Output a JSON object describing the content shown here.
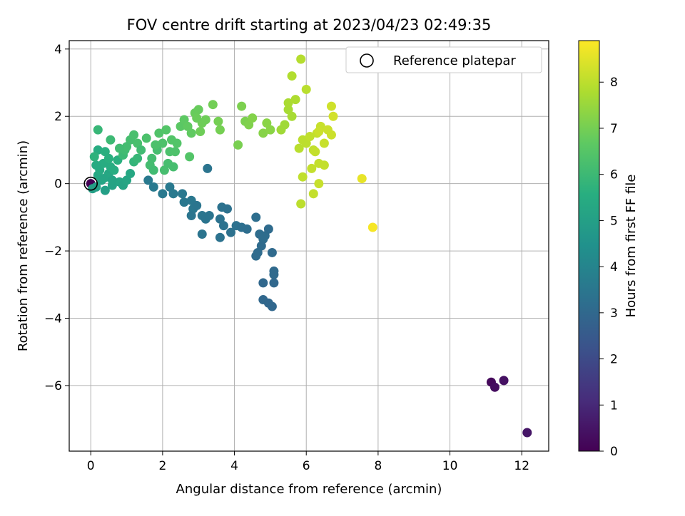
{
  "chart_data": {
    "type": "scatter",
    "title": "FOV centre drift starting at 2023/04/23 02:49:35",
    "xlabel": "Angular distance from reference (arcmin)",
    "ylabel": "Rotation from reference (arcmin)",
    "xlim": [
      -0.6,
      12.75
    ],
    "ylim": [
      -7.95,
      4.25
    ],
    "xticks": [
      0,
      2,
      4,
      6,
      8,
      10,
      12
    ],
    "yticks": [
      -6,
      -4,
      -2,
      0,
      2,
      4
    ],
    "grid": true,
    "legend": {
      "position": "upper-right",
      "entries": [
        "Reference platepar"
      ]
    },
    "reference_point": {
      "x": 0,
      "y": 0,
      "label": "Reference platepar"
    },
    "colorbar": {
      "label": "Hours from first FF file",
      "min": 0,
      "max": 8.9,
      "ticks": [
        0,
        1,
        2,
        3,
        4,
        5,
        6,
        7,
        8
      ],
      "colormap": "viridis"
    },
    "points": [
      [
        0,
        0,
        0
      ],
      [
        11.15,
        -5.9,
        0.2
      ],
      [
        11.25,
        -6.05,
        0.3
      ],
      [
        11.5,
        -5.85,
        0.4
      ],
      [
        12.15,
        -7.4,
        0.5
      ],
      [
        1.6,
        0.1,
        3.6
      ],
      [
        1.75,
        -0.1,
        3.6
      ],
      [
        2.2,
        -0.1,
        3.6
      ],
      [
        2.3,
        -0.3,
        3.6
      ],
      [
        2.55,
        -0.3,
        3.55
      ],
      [
        2.6,
        -0.55,
        3.5
      ],
      [
        2.8,
        -0.5,
        3.5
      ],
      [
        2.85,
        -0.75,
        3.5
      ],
      [
        2.95,
        -0.65,
        3.45
      ],
      [
        3.1,
        -0.95,
        3.45
      ],
      [
        3.2,
        -1.05,
        3.4
      ],
      [
        3.3,
        -0.95,
        3.4
      ],
      [
        2.8,
        -0.95,
        3.45
      ],
      [
        3.6,
        -1.05,
        3.35
      ],
      [
        3.7,
        -1.25,
        3.35
      ],
      [
        3.65,
        -0.7,
        3.35
      ],
      [
        3.8,
        -0.75,
        3.3
      ],
      [
        3.9,
        -1.45,
        3.3
      ],
      [
        4.05,
        -1.25,
        3.3
      ],
      [
        4.2,
        -1.3,
        3.25
      ],
      [
        4.35,
        -1.35,
        3.2
      ],
      [
        4.6,
        -1,
        3.2
      ],
      [
        4.7,
        -1.5,
        3.15
      ],
      [
        4.8,
        -1.65,
        3.15
      ],
      [
        4.85,
        -1.55,
        3.15
      ],
      [
        4.75,
        -1.85,
        3.1
      ],
      [
        4.65,
        -2.05,
        3.1
      ],
      [
        4.6,
        -2.15,
        3.1
      ],
      [
        4.95,
        -1.35,
        3.1
      ],
      [
        5.05,
        -2.05,
        3.05
      ],
      [
        5.1,
        -2.6,
        3.05
      ],
      [
        5.1,
        -2.7,
        3.05
      ],
      [
        5.1,
        -2.95,
        3.0
      ],
      [
        4.8,
        -2.95,
        3.0
      ],
      [
        4.8,
        -3.45,
        3.0
      ],
      [
        4.95,
        -3.55,
        2.95
      ],
      [
        5.05,
        -3.65,
        2.95
      ],
      [
        3.1,
        -1.5,
        3.4
      ],
      [
        3.6,
        -1.6,
        3.35
      ],
      [
        3.25,
        0.45,
        3.4
      ],
      [
        2.0,
        -0.3,
        3.6
      ],
      [
        0.05,
        -0.15,
        5.0
      ],
      [
        0.15,
        -0.1,
        5.0
      ],
      [
        0.3,
        0.1,
        5.1
      ],
      [
        0.4,
        -0.2,
        5.0
      ],
      [
        0.5,
        0.3,
        5.2
      ],
      [
        0.6,
        -0.05,
        5.1
      ],
      [
        0.8,
        0.05,
        5.2
      ],
      [
        0.9,
        -0.05,
        5.15
      ],
      [
        1.0,
        0.1,
        5.2
      ],
      [
        1.1,
        0.3,
        5.3
      ],
      [
        0.2,
        0.25,
        5.3
      ],
      [
        0.25,
        0.4,
        5.4
      ],
      [
        0.35,
        0.6,
        5.5
      ],
      [
        0.45,
        0.2,
        5.3
      ],
      [
        0.55,
        0.5,
        5.5
      ],
      [
        0.65,
        0.4,
        5.5
      ],
      [
        0.75,
        0.7,
        5.6
      ],
      [
        0.2,
        1.0,
        5.5
      ],
      [
        0.4,
        0.95,
        5.6
      ],
      [
        0.5,
        0.75,
        5.6
      ],
      [
        0.35,
        0.15,
        5.2
      ],
      [
        0.15,
        0.55,
        5.4
      ],
      [
        0.6,
        0.1,
        5.15
      ],
      [
        1.2,
        0.65,
        5.8
      ],
      [
        1.3,
        0.75,
        5.9
      ],
      [
        0.1,
        0.8,
        5.7
      ],
      [
        0.2,
        1.6,
        5.9
      ],
      [
        0.55,
        1.3,
        6.0
      ],
      [
        0.9,
        0.85,
        6.0
      ],
      [
        0.95,
        1.0,
        6.1
      ],
      [
        1.1,
        1.3,
        6.2
      ],
      [
        1.3,
        1.2,
        6.25
      ],
      [
        1.4,
        1.0,
        6.1
      ],
      [
        1.55,
        1.35,
        6.3
      ],
      [
        1.7,
        0.75,
        6.15
      ],
      [
        1.85,
        1.0,
        6.2
      ],
      [
        1.9,
        1.5,
        6.4
      ],
      [
        2.0,
        1.2,
        6.35
      ],
      [
        2.1,
        1.6,
        6.45
      ],
      [
        2.2,
        0.95,
        6.3
      ],
      [
        2.3,
        0.5,
        6.2
      ],
      [
        2.35,
        0.95,
        6.35
      ],
      [
        2.4,
        1.2,
        6.45
      ],
      [
        2.5,
        1.7,
        6.6
      ],
      [
        2.6,
        1.9,
        6.65
      ],
      [
        2.7,
        1.7,
        6.7
      ],
      [
        2.8,
        1.5,
        6.7
      ],
      [
        2.9,
        2.1,
        6.8
      ],
      [
        3.0,
        2.2,
        6.8
      ],
      [
        3.1,
        1.8,
        6.9
      ],
      [
        3.2,
        1.9,
        6.9
      ],
      [
        3.4,
        2.35,
        6.95
      ],
      [
        3.55,
        1.85,
        7.0
      ],
      [
        3.6,
        1.6,
        7.0
      ],
      [
        4.1,
        1.15,
        7.05
      ],
      [
        4.2,
        2.3,
        7.1
      ],
      [
        4.3,
        1.85,
        7.1
      ],
      [
        4.4,
        1.75,
        7.15
      ],
      [
        4.5,
        1.95,
        7.2
      ],
      [
        4.8,
        1.5,
        7.25
      ],
      [
        4.9,
        1.8,
        7.3
      ],
      [
        5.0,
        1.6,
        7.3
      ],
      [
        1.65,
        0.55,
        6.15
      ],
      [
        1.75,
        0.4,
        6.1
      ],
      [
        1.8,
        1.15,
        6.3
      ],
      [
        2.75,
        0.8,
        6.45
      ],
      [
        1.0,
        1.1,
        6.15
      ],
      [
        0.8,
        1.05,
        6.1
      ],
      [
        1.2,
        1.45,
        6.25
      ],
      [
        2.15,
        0.6,
        6.2
      ],
      [
        2.25,
        1.3,
        6.45
      ],
      [
        2.05,
        0.4,
        6.2
      ],
      [
        3.05,
        1.55,
        6.9
      ],
      [
        2.95,
        1.95,
        6.85
      ],
      [
        5.3,
        1.6,
        7.6
      ],
      [
        5.4,
        1.75,
        7.6
      ],
      [
        5.5,
        2.2,
        7.7
      ],
      [
        5.6,
        2.0,
        7.7
      ],
      [
        5.5,
        2.4,
        7.75
      ],
      [
        5.7,
        2.5,
        7.8
      ],
      [
        5.6,
        3.2,
        7.85
      ],
      [
        5.85,
        3.7,
        7.9
      ],
      [
        6.0,
        2.8,
        7.95
      ],
      [
        5.8,
        1.05,
        7.95
      ],
      [
        5.9,
        1.3,
        8.0
      ],
      [
        6.0,
        1.2,
        8.0
      ],
      [
        6.1,
        1.4,
        8.05
      ],
      [
        6.2,
        1.0,
        8.05
      ],
      [
        6.3,
        1.5,
        8.1
      ],
      [
        6.4,
        1.7,
        8.15
      ],
      [
        6.5,
        1.2,
        8.15
      ],
      [
        6.6,
        1.6,
        8.2
      ],
      [
        6.7,
        1.45,
        8.2
      ],
      [
        6.7,
        2.3,
        8.25
      ],
      [
        6.75,
        2.0,
        8.3
      ],
      [
        6.35,
        0.6,
        8.1
      ],
      [
        6.5,
        0.55,
        8.1
      ],
      [
        6.15,
        0.45,
        8.1
      ],
      [
        6.2,
        -0.3,
        8.1
      ],
      [
        6.35,
        0.0,
        8.15
      ],
      [
        5.9,
        0.2,
        8.05
      ],
      [
        5.85,
        -0.6,
        8.0
      ],
      [
        6.25,
        0.95,
        8.1
      ],
      [
        6.35,
        1.55,
        8.2
      ],
      [
        7.55,
        0.15,
        8.6
      ],
      [
        7.85,
        -1.3,
        8.8
      ]
    ]
  }
}
